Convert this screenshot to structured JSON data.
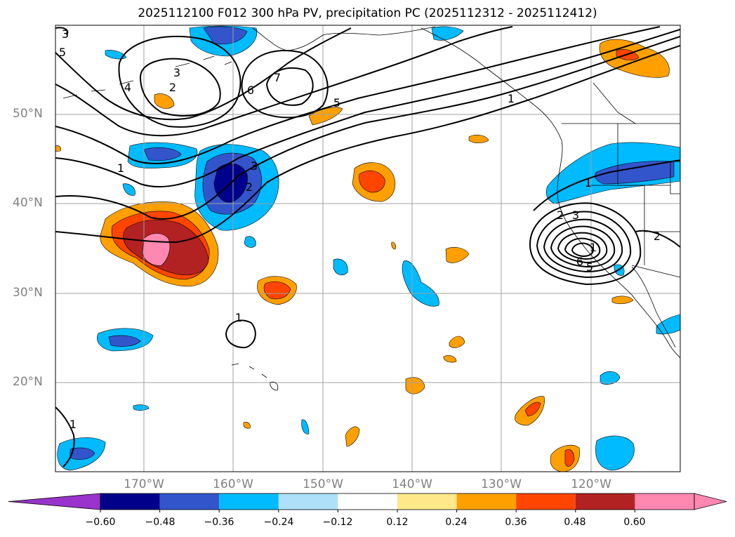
{
  "title": "2025112100 F012 300 hPa PV, precipitation PC (2025112312 - 2025112412)",
  "map": {
    "lat_labels": [
      "50°N",
      "40°N",
      "30°N",
      "20°N"
    ],
    "lon_labels": [
      "170°W",
      "160°W",
      "150°W",
      "140°W",
      "130°W",
      "120°W"
    ],
    "grid_color": "#a0a0a0",
    "contour_labels": [
      "3",
      "5",
      "3",
      "2",
      "4",
      "7",
      "6",
      "5",
      "1",
      "1",
      "3",
      "2",
      "1",
      "2",
      "3",
      "1",
      "6",
      "5",
      "2",
      "1",
      "1"
    ]
  },
  "colorbar": {
    "colors": [
      "#9933cc",
      "#00008b",
      "#3355cc",
      "#00bbff",
      "#aee0fa",
      "#ffffff",
      "#ffe88a",
      "#ffa000",
      "#ff4500",
      "#b22222",
      "#ff88b0",
      "#ff88b0"
    ],
    "tick_labels": [
      "−0.60",
      "−0.48",
      "−0.36",
      "−0.24",
      "−0.12",
      "0.12",
      "0.24",
      "0.36",
      "0.48",
      "0.60"
    ]
  }
}
